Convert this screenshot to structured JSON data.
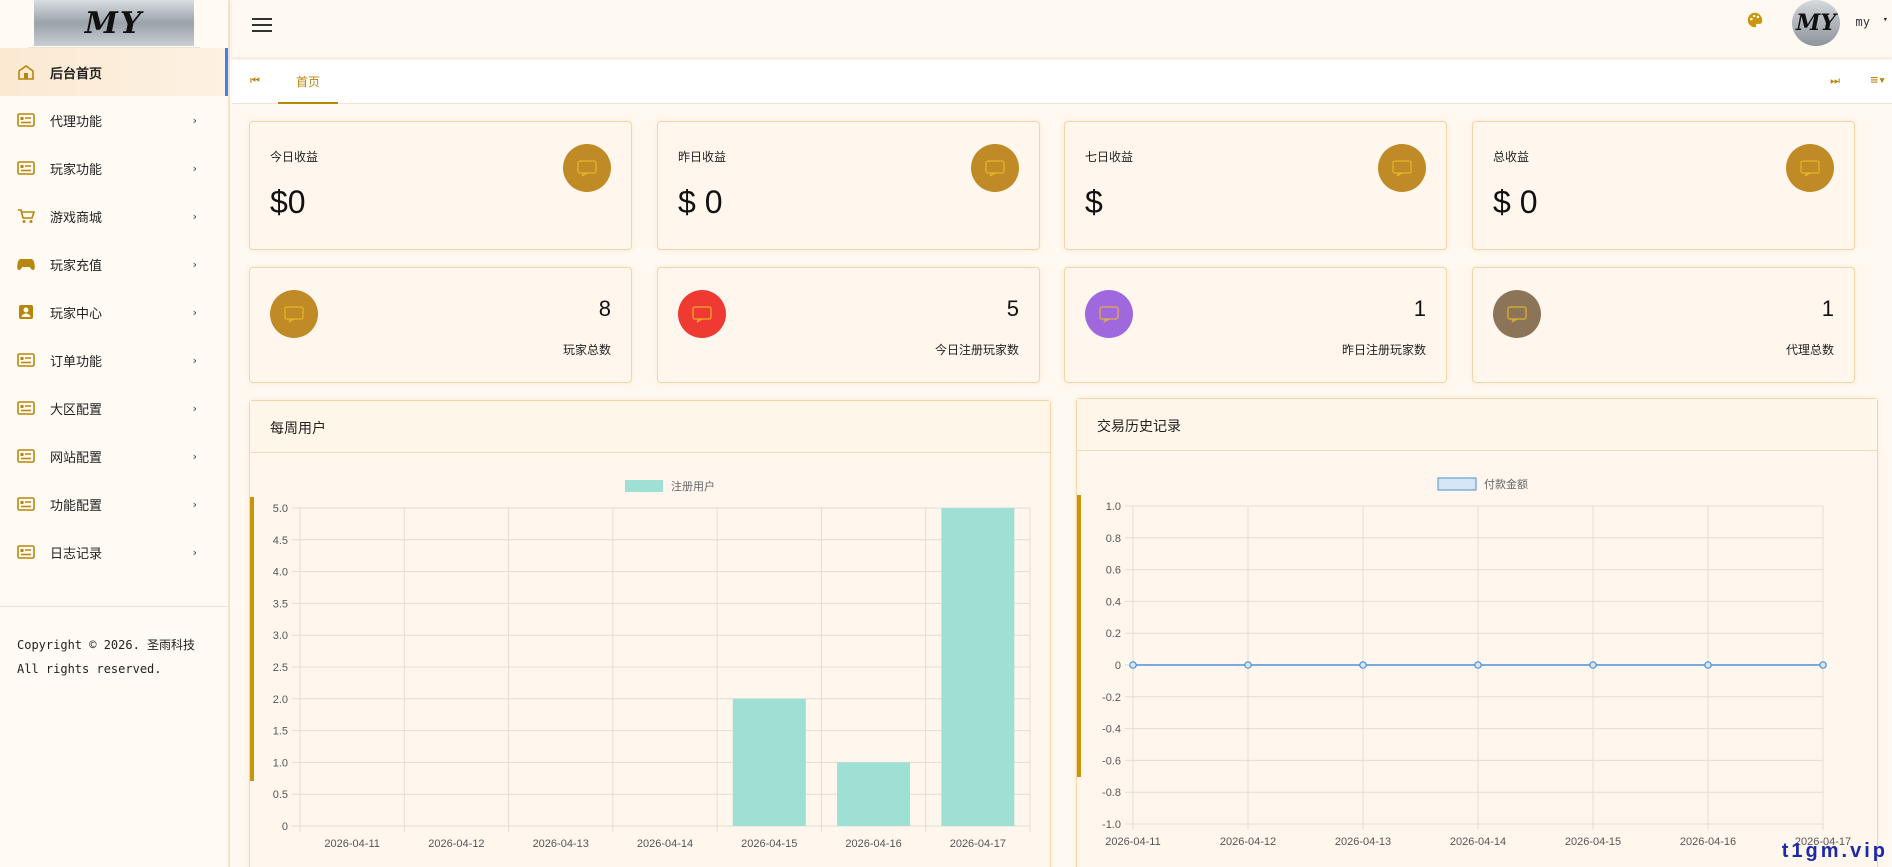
{
  "brand": {
    "logo_text": "MY"
  },
  "sidebar": {
    "items": [
      {
        "label": "后台首页",
        "icon": "home-icon",
        "has_arrow": false
      },
      {
        "label": "代理功能",
        "icon": "list-card-icon",
        "has_arrow": true
      },
      {
        "label": "玩家功能",
        "icon": "list-card-icon",
        "has_arrow": true
      },
      {
        "label": "游戏商城",
        "icon": "cart-icon",
        "has_arrow": true
      },
      {
        "label": "玩家充值",
        "icon": "gamepad-icon",
        "has_arrow": true
      },
      {
        "label": "玩家中心",
        "icon": "contact-icon",
        "has_arrow": true
      },
      {
        "label": "订单功能",
        "icon": "list-card-icon",
        "has_arrow": true
      },
      {
        "label": "大区配置",
        "icon": "list-card-icon",
        "has_arrow": true
      },
      {
        "label": "网站配置",
        "icon": "list-card-icon",
        "has_arrow": true
      },
      {
        "label": "功能配置",
        "icon": "list-card-icon",
        "has_arrow": true
      },
      {
        "label": "日志记录",
        "icon": "list-card-icon",
        "has_arrow": true
      }
    ],
    "arrow": "›",
    "copyright_line1": "Copyright © 2026. 圣雨科技",
    "copyright_line2": "All rights reserved."
  },
  "header": {
    "user_name": "my",
    "avatar_text": "MY",
    "caret": "▾"
  },
  "tabs": {
    "prev_glyph": "⏮",
    "home_label": "首页",
    "next_glyph": "⏭",
    "menu_glyph": "≡▾"
  },
  "stats": [
    {
      "title": "今日收益",
      "value": "$0"
    },
    {
      "title": "昨日收益",
      "value": "$ 0"
    },
    {
      "title": "七日收益",
      "value": "$"
    },
    {
      "title": "总收益",
      "value": "$ 0"
    }
  ],
  "counts": [
    {
      "value": "8",
      "label": "玩家总数",
      "color": "#c08a26"
    },
    {
      "value": "5",
      "label": "今日注册玩家数",
      "color": "#ee3a32"
    },
    {
      "value": "1",
      "label": "昨日注册玩家数",
      "color": "#9f68dc"
    },
    {
      "value": "1",
      "label": "代理总数",
      "color": "#8b7458"
    }
  ],
  "panels": {
    "weekly_title": "每周用户",
    "history_title": "交易历史记录"
  },
  "chart_data": [
    {
      "type": "bar",
      "categories": [
        "2026-04-11",
        "2026-04-12",
        "2026-04-13",
        "2026-04-14",
        "2026-04-15",
        "2026-04-16",
        "2026-04-17"
      ],
      "series": [
        {
          "name": "注册用户",
          "values": [
            0,
            0,
            0,
            0,
            2,
            1,
            5
          ],
          "color": "#9ee0d4"
        }
      ],
      "ylim": [
        0,
        5
      ],
      "yticks": [
        "5.0",
        "4.5",
        "4.0",
        "3.5",
        "3.0",
        "2.5",
        "2.0",
        "1.5",
        "1.0",
        "0.5",
        "0"
      ],
      "grid": true,
      "legend": "top-center"
    },
    {
      "type": "line",
      "categories": [
        "2026-04-11",
        "2026-04-12",
        "2026-04-13",
        "2026-04-14",
        "2026-04-15",
        "2026-04-16",
        "2026-04-17"
      ],
      "series": [
        {
          "name": "付款金额",
          "values": [
            0,
            0,
            0,
            0,
            0,
            0,
            0
          ],
          "color": "#4a90d9"
        }
      ],
      "ylim": [
        -1,
        1
      ],
      "yticks": [
        "1.0",
        "0.8",
        "0.6",
        "0.4",
        "0.2",
        "0",
        "-0.2",
        "-0.4",
        "-0.6",
        "-0.8",
        "-1.0"
      ],
      "grid": true,
      "legend": "top-center"
    }
  ],
  "watermark": "t1gm.vip"
}
